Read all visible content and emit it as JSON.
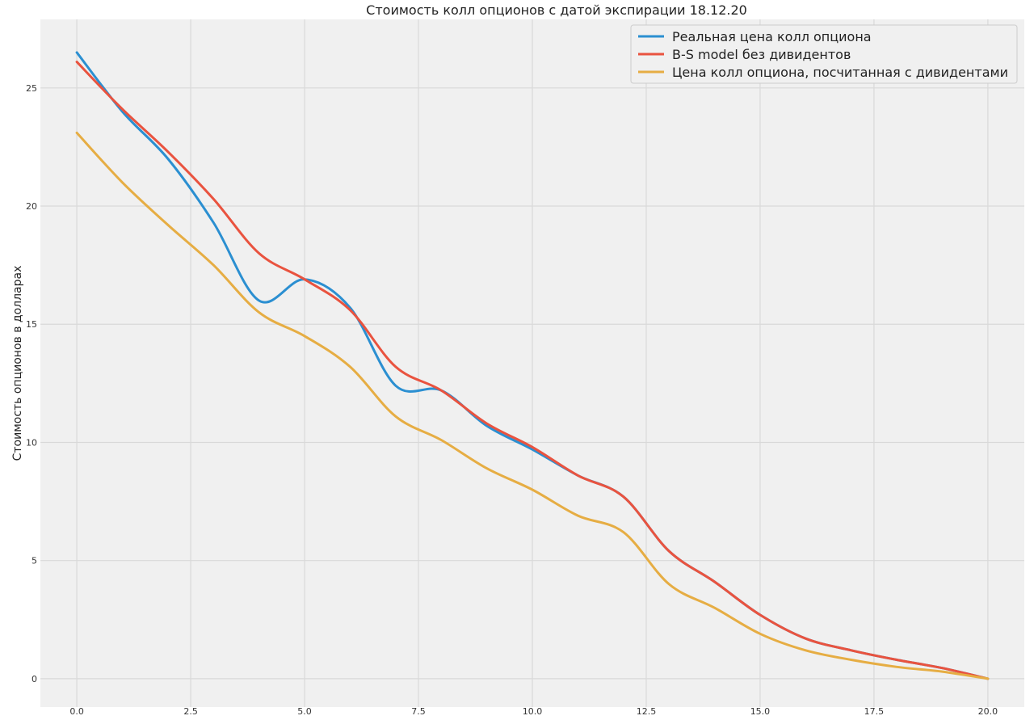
{
  "chart_data": {
    "type": "line",
    "title": "Стоимость колл опционов с датой экспирации 18.12.20",
    "xlabel": "",
    "ylabel": "Стоимость опционов в долларах",
    "xlim": [
      -0.8,
      20.8
    ],
    "ylim": [
      -1.2,
      27.9
    ],
    "xticks": [
      "0.0",
      "2.5",
      "5.0",
      "7.5",
      "10.0",
      "12.5",
      "15.0",
      "17.5",
      "20.0"
    ],
    "yticks": [
      "0",
      "5",
      "10",
      "15",
      "20",
      "25"
    ],
    "grid": true,
    "legend_position": "top-right",
    "x": [
      0,
      1,
      2,
      3,
      4,
      5,
      6,
      7,
      8,
      9,
      10,
      11,
      12,
      13,
      14,
      15,
      16,
      17,
      18,
      19,
      20
    ],
    "series": [
      {
        "name": "Реальная цена колл опциона",
        "color": "#2b8fd1",
        "values": [
          26.5,
          24.0,
          22.0,
          19.3,
          16.0,
          16.9,
          15.7,
          12.4,
          12.2,
          10.7,
          9.7,
          8.6,
          7.7,
          5.4,
          4.1,
          2.7,
          1.7,
          1.2,
          0.8,
          0.45,
          0.0
        ]
      },
      {
        "name": "B-S model без дивидентов",
        "color": "#e9533f",
        "values": [
          26.1,
          24.1,
          22.3,
          20.3,
          18.0,
          16.9,
          15.6,
          13.2,
          12.2,
          10.8,
          9.8,
          8.6,
          7.7,
          5.4,
          4.1,
          2.7,
          1.7,
          1.2,
          0.8,
          0.45,
          0.0
        ]
      },
      {
        "name": "Цена колл опциона, посчитанная с дивидентами",
        "color": "#e6ad43",
        "values": [
          23.1,
          21.0,
          19.2,
          17.5,
          15.5,
          14.5,
          13.2,
          11.1,
          10.1,
          8.9,
          8.0,
          6.9,
          6.2,
          4.0,
          3.0,
          1.9,
          1.2,
          0.8,
          0.5,
          0.3,
          0.0
        ]
      }
    ]
  }
}
